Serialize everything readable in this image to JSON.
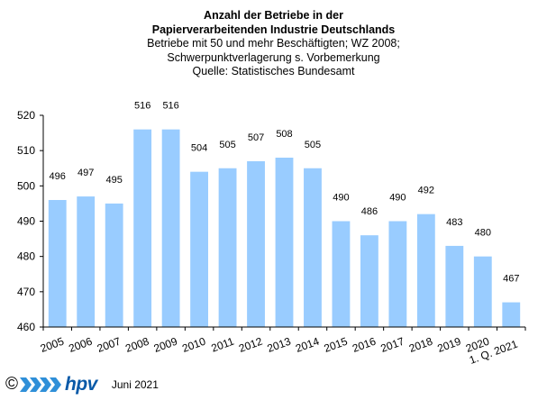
{
  "chart_data": {
    "type": "bar",
    "title_lines": [
      "Anzahl der Betriebe in der",
      "Papierverarbeitenden Industrie Deutschlands"
    ],
    "subtitle_lines": [
      "Betriebe  mit 50 und  mehr Beschäftigten;  WZ 2008;",
      "Schwerpunktverlagerung   s. Vorbemerkung",
      "Quelle:  Statistisches Bundesamt"
    ],
    "categories": [
      "2005",
      "2006",
      "2007",
      "2008",
      "2009",
      "2010",
      "2011",
      "2012",
      "2013",
      "2014",
      "2015",
      "2016",
      "2017",
      "2018",
      "2019",
      "2020",
      "1. Q. 2021"
    ],
    "values": [
      496,
      497,
      495,
      516,
      516,
      504,
      505,
      507,
      508,
      505,
      490,
      486,
      490,
      492,
      483,
      480,
      467
    ],
    "data_labels": [
      "496",
      "497",
      "495",
      "516",
      "516",
      "504",
      "505",
      "507",
      "508",
      "505",
      "490",
      "486",
      "490",
      "492",
      "483",
      "480",
      "467"
    ],
    "ylim": [
      460,
      520
    ],
    "yticks": [
      460,
      470,
      480,
      490,
      500,
      510,
      520
    ],
    "xlabel": "",
    "ylabel": "",
    "grid": false,
    "bar_color": "#99ccff"
  },
  "footer": {
    "copyright": "©",
    "logo_text": "hpv",
    "date": "Juni 2021"
  },
  "colors": {
    "logo_chevrons": "#2f8fd8",
    "logo_text": "#0a5aa8"
  }
}
